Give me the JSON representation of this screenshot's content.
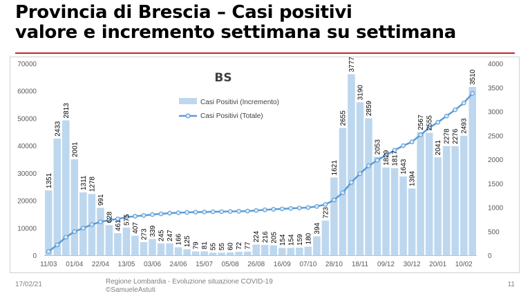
{
  "header": {
    "title_line1": "Provincia di Brescia – Casi positivi",
    "title_line2": "valore e incremento settimana su settimana"
  },
  "footer": {
    "date": "17/02/21",
    "source_line1": "Regione Lombardia - Evoluzione situazione COVID-19",
    "source_line2": "©SamueleAstuti",
    "page": "11"
  },
  "colors": {
    "accent_rule": "#c0282d",
    "bar": "#bdd7ee",
    "line": "#5b9bd5",
    "text": "#000000"
  },
  "chart_data": {
    "type": "bar+line",
    "title": "BS",
    "categories": [
      "11/03",
      "18/03",
      "25/03",
      "01/04",
      "08/04",
      "15/04",
      "22/04",
      "29/04",
      "06/05",
      "13/05",
      "20/05",
      "27/05",
      "03/06",
      "10/06",
      "17/06",
      "24/06",
      "01/07",
      "08/07",
      "15/07",
      "22/07",
      "29/07",
      "05/08",
      "12/08",
      "19/08",
      "26/08",
      "02/09",
      "09/09",
      "16/09",
      "23/09",
      "30/09",
      "07/10",
      "14/10",
      "21/10",
      "28/10",
      "04/11",
      "11/11",
      "18/11",
      "25/11",
      "02/12",
      "09/12",
      "16/12",
      "23/12",
      "30/12",
      "06/01",
      "13/01",
      "20/01",
      "27/01",
      "03/02",
      "10/02",
      "17/02"
    ],
    "x_tick_labels": [
      "11/03",
      "01/04",
      "22/04",
      "13/05",
      "03/06",
      "24/06",
      "15/07",
      "05/08",
      "26/08",
      "16/09",
      "07/10",
      "28/10",
      "18/11",
      "09/12",
      "30/12",
      "20/01",
      "10/02"
    ],
    "x_tick_every": 3,
    "series": [
      {
        "name": "Casi Positivi (Incremento)",
        "type": "bar",
        "axis": "right",
        "values": [
          1351,
          2433,
          2813,
          2001,
          1311,
          1278,
          991,
          628,
          461,
          575,
          407,
          273,
          339,
          245,
          247,
          166,
          125,
          79,
          81,
          55,
          55,
          60,
          72,
          77,
          224,
          216,
          205,
          154,
          154,
          159,
          180,
          394,
          723,
          1621,
          2655,
          3777,
          3190,
          2859,
          2053,
          1829,
          1817,
          1643,
          1394,
          2567,
          2555,
          2041,
          2278,
          2276,
          2493,
          3510
        ],
        "labels": [
          "1351",
          "2433",
          "2813",
          "2001",
          "1311",
          "1278",
          "991",
          "628",
          "461",
          "575",
          "407",
          "273",
          "339",
          "245",
          "247",
          "166",
          "125",
          "79",
          "81",
          "55",
          "55",
          "60",
          "72",
          "77",
          "224",
          "216",
          "205",
          "154",
          "154",
          "159",
          "180",
          "394",
          "723",
          "1621",
          "2655",
          "3777",
          "3190",
          "2859",
          "2053",
          "1829",
          "1817",
          "1643",
          "1394",
          "2567",
          "2555",
          "2041",
          "2278",
          "2276",
          "2493",
          "3510"
        ]
      },
      {
        "name": "Casi Positivi (Totale)",
        "type": "line",
        "axis": "left",
        "values": [
          1351,
          3784,
          6597,
          8598,
          9909,
          11187,
          12178,
          12806,
          13267,
          13842,
          14249,
          14522,
          14861,
          15106,
          15353,
          15519,
          15644,
          15723,
          15804,
          15859,
          15914,
          15974,
          16046,
          16123,
          16347,
          16563,
          16768,
          16922,
          17076,
          17235,
          17415,
          17809,
          18532,
          20153,
          22808,
          26585,
          29775,
          32634,
          34687,
          36516,
          38333,
          39976,
          41370,
          43937,
          46492,
          48533,
          50811,
          53087,
          55580,
          59090
        ]
      }
    ],
    "y_left": {
      "ylim": [
        0,
        70000
      ],
      "ticks": [
        "0",
        "10000",
        "20000",
        "30000",
        "40000",
        "50000",
        "60000",
        "70000"
      ]
    },
    "y_right": {
      "ylim": [
        0,
        4000
      ],
      "ticks": [
        "0",
        "500",
        "1000",
        "1500",
        "2000",
        "2500",
        "3000",
        "3500",
        "4000"
      ]
    },
    "legend_position": "top-left inside",
    "grid": false
  }
}
